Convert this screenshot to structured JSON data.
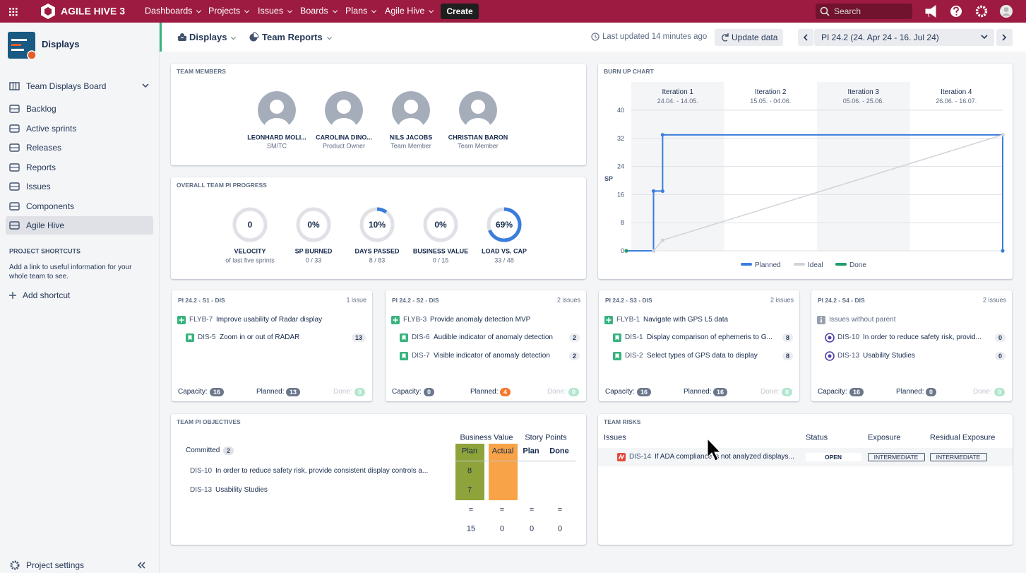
{
  "topbar": {
    "product": "AGILE HIVE 3",
    "menu": [
      "Dashboards",
      "Projects",
      "Issues",
      "Boards",
      "Plans",
      "Agile Hive"
    ],
    "create": "Create",
    "search": "Search"
  },
  "sidebar": {
    "project": "Displays",
    "board": "Team Displays Board",
    "items": [
      "Backlog",
      "Active sprints",
      "Releases",
      "Reports",
      "Issues",
      "Components",
      "Agile Hive"
    ],
    "shortcuts_title": "PROJECT SHORTCUTS",
    "shortcuts_text": "Add a link to useful information for your whole team to see.",
    "add_shortcut": "Add shortcut",
    "settings": "Project settings"
  },
  "header": {
    "displays": "Displays",
    "team_reports": "Team Reports",
    "updated": "Last updated 14 minutes ago",
    "update_button": "Update data",
    "pi": "PI 24.2 (24. Apr 24 - 16. Jul 24)"
  },
  "team_members": {
    "title": "TEAM MEMBERS",
    "members": [
      {
        "name": "LEONHARD MOLI...",
        "role": "SM/TC"
      },
      {
        "name": "CAROLINA DINO...",
        "role": "Product Owner"
      },
      {
        "name": "NILS JACOBS",
        "role": "Team Member"
      },
      {
        "name": "CHRISTIAN BARON",
        "role": "Team Member"
      }
    ]
  },
  "progress": {
    "title": "OVERALL TEAM PI PROGRESS",
    "gauges": [
      {
        "value": 0,
        "value_label": "0",
        "label": "VELOCITY",
        "sub": "of last five sprints"
      },
      {
        "value": 0,
        "value_label": "0%",
        "label": "SP BURNED",
        "sub": "0 / 33"
      },
      {
        "value": 10,
        "value_label": "10%",
        "label": "DAYS PASSED",
        "sub": "8 / 83"
      },
      {
        "value": 0,
        "value_label": "0%",
        "label": "BUSINESS VALUE",
        "sub": "0 / 15"
      },
      {
        "value": 69,
        "value_label": "69%",
        "label": "LOAD VS. CAP",
        "sub": "33 / 48"
      }
    ]
  },
  "burnup": {
    "type": "line",
    "title": "BURN UP CHART",
    "y_label": "SP",
    "iterations": [
      {
        "name": "Iteration 1",
        "dates": "24.04. - 14.05."
      },
      {
        "name": "Iteration 2",
        "dates": "15.05. - 04.06."
      },
      {
        "name": "Iteration 3",
        "dates": "05.06. - 25.06."
      },
      {
        "name": "Iteration 4",
        "dates": "26.06. - 16.07."
      }
    ],
    "xlim": [
      0,
      83
    ],
    "ylim": [
      0,
      40
    ],
    "yticks": [
      0,
      8,
      16,
      24,
      32,
      40
    ],
    "grid": true,
    "series": [
      {
        "name": "Planned",
        "color": "#3b7ddd",
        "x": [
          0,
          6,
          6,
          8,
          8,
          83,
          83
        ],
        "values": [
          0,
          0,
          17,
          17,
          33,
          33,
          0
        ]
      },
      {
        "name": "Ideal",
        "color": "#d0d3d9",
        "x": [
          6,
          8,
          83
        ],
        "values": [
          0,
          3,
          33
        ]
      },
      {
        "name": "Done",
        "color": "#1f9d6b",
        "x": [
          0
        ],
        "values": [
          0
        ]
      }
    ]
  },
  "sprint_labels": {
    "capacity": "Capacity:",
    "planned": "Planned:",
    "done": "Done:"
  },
  "sprints": [
    {
      "title": "PI 24.2 - S1 - DIS",
      "count": "1 issue",
      "capacity": 16,
      "planned": 13,
      "done": 0,
      "groups": [
        {
          "key": "FLYB-7",
          "summary": "Improve usability of Radar display",
          "items": [
            {
              "key": "DIS-5",
              "summary": "Zoom in or out of RADAR",
              "points": 13
            }
          ]
        }
      ]
    },
    {
      "title": "PI 24.2 - S2 - DIS",
      "count": "2 issues",
      "capacity": 0,
      "planned": 4,
      "done": 0,
      "groups": [
        {
          "key": "FLYB-3",
          "summary": "Provide anomaly detection MVP",
          "items": [
            {
              "key": "DIS-6",
              "summary": "Audible indicator of anomaly detection",
              "points": 2
            },
            {
              "key": "DIS-7",
              "summary": "Visible indicator of anomaly detection",
              "points": 2
            }
          ]
        }
      ]
    },
    {
      "title": "PI 24.2 - S3 - DIS",
      "count": "2 issues",
      "capacity": 16,
      "planned": 16,
      "done": 0,
      "groups": [
        {
          "key": "FLYB-1",
          "summary": "Navigate with GPS L5 data",
          "items": [
            {
              "key": "DIS-1",
              "summary": "Display comparison of ephemeris to G...",
              "points": 8
            },
            {
              "key": "DIS-2",
              "summary": "Select types of GPS data to display",
              "points": 8
            }
          ]
        }
      ]
    },
    {
      "title": "PI 24.2 - S4 - DIS",
      "count": "2 issues",
      "capacity": 16,
      "planned": 0,
      "done": 0,
      "groups": [
        {
          "summary": "Issues without parent",
          "items": [
            {
              "key": "DIS-10",
              "summary": "In order to reduce safety risk, provid...",
              "points": 0
            },
            {
              "key": "DIS-13",
              "summary": "Usability Studies",
              "points": 0
            }
          ]
        }
      ]
    }
  ],
  "objectives": {
    "title": "TEAM PI OBJECTIVES",
    "business_value": "Business Value",
    "story_points": "Story Points",
    "bv_plan": "Plan",
    "bv_actual": "Actual",
    "sp_plan": "Plan",
    "sp_done": "Done",
    "committed": "Committed",
    "committed_count": 2,
    "rows": [
      {
        "key": "DIS-10",
        "summary": "In order to reduce safety risk, provide consistent display controls a...",
        "bv_plan": 8
      },
      {
        "key": "DIS-13",
        "summary": "Usability Studies",
        "bv_plan": 7
      }
    ],
    "equals": "=",
    "totals": [
      15,
      0,
      0,
      0
    ]
  },
  "risks": {
    "title": "TEAM RISKS",
    "columns": [
      "Issues",
      "Status",
      "Exposure",
      "Residual Exposure"
    ],
    "rows": [
      {
        "key": "DIS-14",
        "summary": "If ADA compliance is not analyzed displays...",
        "status": "OPEN",
        "exposure": "INTERMEDIATE",
        "residual": "INTERMEDIATE"
      }
    ]
  }
}
